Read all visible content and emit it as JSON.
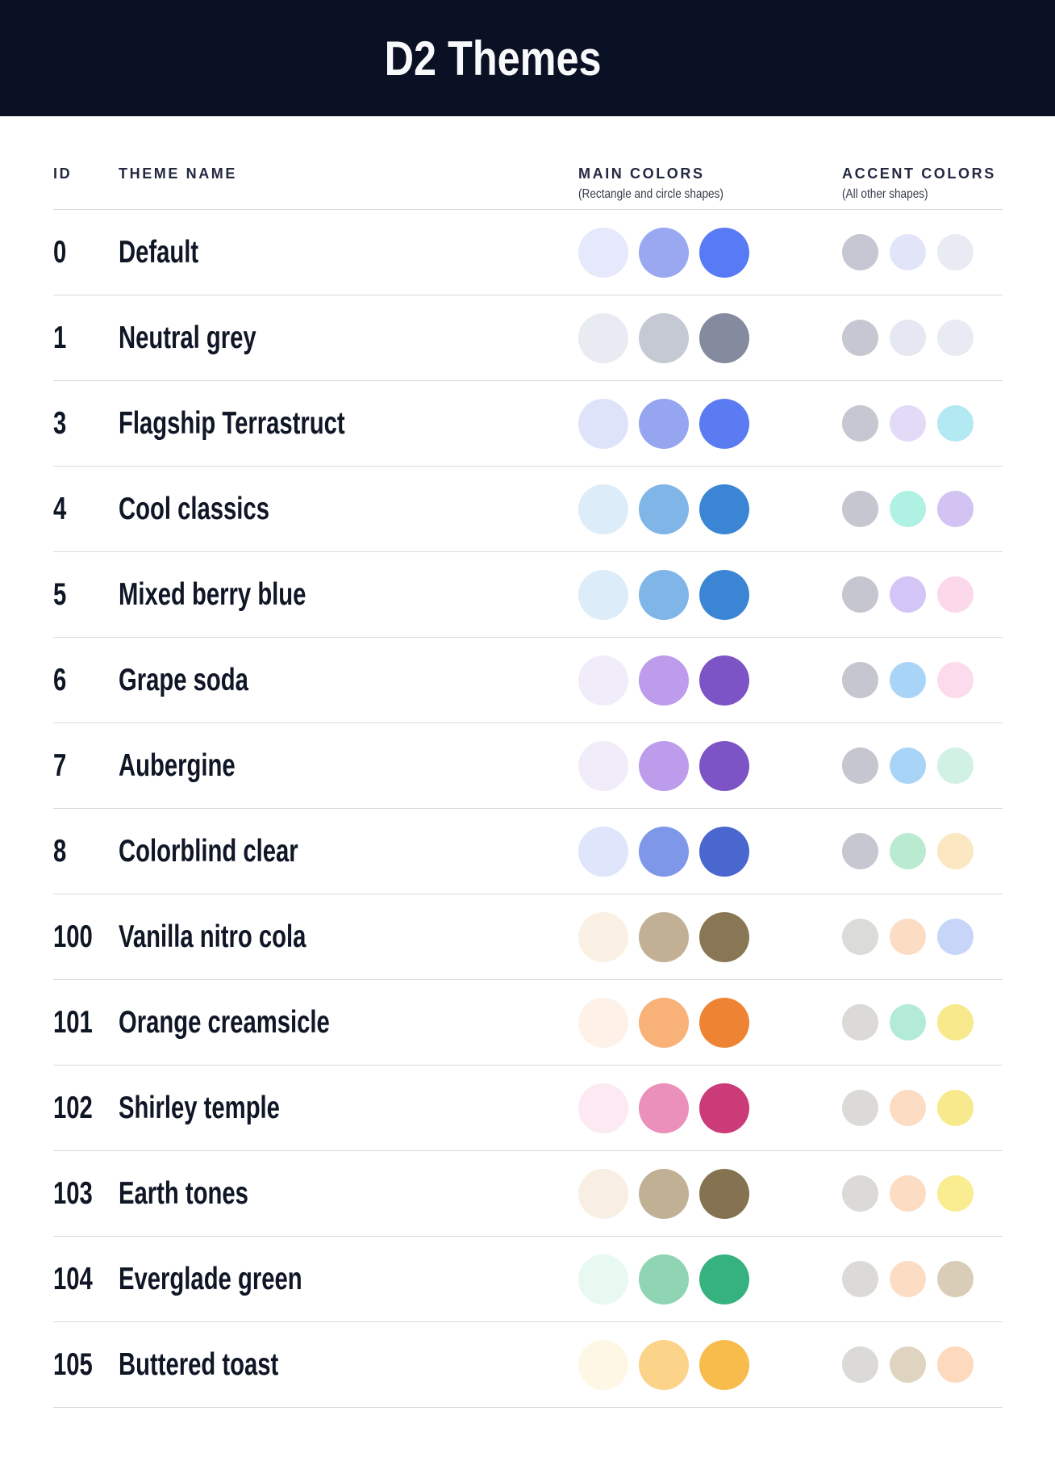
{
  "banner": {
    "title": "D2 Themes",
    "bg_color": "#0b1124",
    "text_color": "#f8f9fb"
  },
  "table": {
    "header": {
      "id_label": "ID",
      "name_label": "THEME NAME",
      "main_label": "MAIN COLORS",
      "main_sublabel": "(Rectangle and circle shapes)",
      "accent_label": "ACCENT COLORS",
      "accent_sublabel": "(All other shapes)"
    },
    "rows": [
      {
        "id": "0",
        "name": "Default",
        "main_colors": [
          "#e6e8fb",
          "#99a8f1",
          "#587af5"
        ],
        "accent_colors": [
          "#c5c7d2",
          "#e2e5f9",
          "#e8ebf4"
        ]
      },
      {
        "id": "1",
        "name": "Neutral grey",
        "main_colors": [
          "#e9ebf2",
          "#c5c9d3",
          "#858b9f"
        ],
        "accent_colors": [
          "#c5c7d2",
          "#e5e7f2",
          "#e8eaf4"
        ]
      },
      {
        "id": "3",
        "name": "Flagship Terrastruct",
        "main_colors": [
          "#dfe3fa",
          "#95a5f0",
          "#5a7bf1"
        ],
        "accent_colors": [
          "#c5c7d2",
          "#e2daf7",
          "#b3e9f2"
        ]
      },
      {
        "id": "4",
        "name": "Cool classics",
        "main_colors": [
          "#dcedf9",
          "#80b5e8",
          "#3a86d4"
        ],
        "accent_colors": [
          "#c5c6d0",
          "#aff2e4",
          "#d3c3f3"
        ]
      },
      {
        "id": "5",
        "name": "Mixed berry blue",
        "main_colors": [
          "#dcedf9",
          "#80b5e8",
          "#3a86d4"
        ],
        "accent_colors": [
          "#c5c6d0",
          "#d3c5f5",
          "#fbd8ea"
        ]
      },
      {
        "id": "6",
        "name": "Grape soda",
        "main_colors": [
          "#f1ecfa",
          "#bc9ceb",
          "#7d54c6"
        ],
        "accent_colors": [
          "#c5c6d0",
          "#a8d4f8",
          "#fcdcec"
        ]
      },
      {
        "id": "7",
        "name": "Aubergine",
        "main_colors": [
          "#f1ecfa",
          "#bc9ceb",
          "#7d54c6"
        ],
        "accent_colors": [
          "#c5c6d0",
          "#a8d4f8",
          "#d2f1e5"
        ]
      },
      {
        "id": "8",
        "name": "Colorblind clear",
        "main_colors": [
          "#dfe5fa",
          "#7e97e9",
          "#4a67cf"
        ],
        "accent_colors": [
          "#c6c7d1",
          "#baead0",
          "#fbe7c2"
        ]
      },
      {
        "id": "100",
        "name": "Vanilla nitro cola",
        "main_colors": [
          "#faf0e4",
          "#c2b094",
          "#897655"
        ],
        "accent_colors": [
          "#dbdbd8",
          "#fddcc4",
          "#c7d6f8"
        ]
      },
      {
        "id": "101",
        "name": "Orange creamsicle",
        "main_colors": [
          "#fdf1e8",
          "#f8b177",
          "#ee8433"
        ],
        "accent_colors": [
          "#dbdad6",
          "#b3ebd8",
          "#f9e98d"
        ]
      },
      {
        "id": "102",
        "name": "Shirley temple",
        "main_colors": [
          "#fce9f1",
          "#ea90ba",
          "#cb3b78"
        ],
        "accent_colors": [
          "#dbdad6",
          "#fcdcc2",
          "#f9e98d"
        ]
      },
      {
        "id": "103",
        "name": "Earth tones",
        "main_colors": [
          "#f9eee3",
          "#c1b194",
          "#857250"
        ],
        "accent_colors": [
          "#dbdad6",
          "#fcdcc3",
          "#faec90"
        ]
      },
      {
        "id": "104",
        "name": "Everglade green",
        "main_colors": [
          "#e7f9f1",
          "#8fd5b3",
          "#35b27f"
        ],
        "accent_colors": [
          "#dbdad6",
          "#fcdcc3",
          "#d9cdb7"
        ]
      },
      {
        "id": "105",
        "name": "Buttered toast",
        "main_colors": [
          "#fef7e5",
          "#fcd489",
          "#f7bc4c"
        ],
        "accent_colors": [
          "#dbdad6",
          "#dfd4c0",
          "#fdd9be"
        ]
      }
    ]
  }
}
